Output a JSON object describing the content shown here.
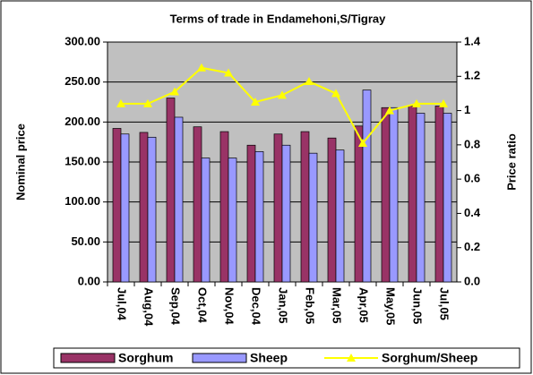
{
  "chart_data": {
    "type": "bar_line",
    "title": "Terms of trade in Endamehoni,S/Tigray",
    "y_label": "Nominal price",
    "y2_label": "Price ratio",
    "categories": [
      "Jul,04",
      "Aug,04",
      "Sep,04",
      "Oct,04",
      "Nov,04",
      "Dec,04",
      "Jan,05",
      "Feb,05",
      "Mar,05",
      "Apr,05",
      "May,05",
      "Jun,05",
      "Jul,05"
    ],
    "series": [
      {
        "name": "Sorghum",
        "type": "bar",
        "color": "#993366",
        "values": [
          192,
          187,
          230,
          194,
          188,
          171,
          185,
          188,
          180,
          195,
          218,
          220,
          220
        ]
      },
      {
        "name": "Sheep",
        "type": "bar",
        "color": "#9999ff",
        "values": [
          185,
          181,
          206,
          155,
          155,
          163,
          171,
          161,
          165,
          240,
          218,
          211,
          211
        ]
      },
      {
        "name": "Sorghum/Sheep",
        "type": "line",
        "axis": "y2",
        "color": "#ffff00",
        "values": [
          1.04,
          1.04,
          1.11,
          1.25,
          1.22,
          1.05,
          1.09,
          1.17,
          1.1,
          0.81,
          1.0,
          1.04,
          1.04
        ]
      }
    ],
    "ylim": [
      0,
      300
    ],
    "yticks": [
      {
        "value": 0,
        "label": "0.00"
      },
      {
        "value": 50,
        "label": "50.00"
      },
      {
        "value": 100,
        "label": "100.00"
      },
      {
        "value": 150,
        "label": "150.00"
      },
      {
        "value": 200,
        "label": "200.00"
      },
      {
        "value": 250,
        "label": "250.00"
      },
      {
        "value": 300,
        "label": "300.00"
      }
    ],
    "y2lim": [
      0,
      1.4
    ],
    "y2ticks": [
      {
        "value": 0,
        "label": "0.0"
      },
      0.2,
      0.4,
      0.6,
      0.8,
      1,
      1.2,
      1.4
    ],
    "grid": true,
    "plot_background": "#c0c0c0",
    "legend": "bottom"
  }
}
